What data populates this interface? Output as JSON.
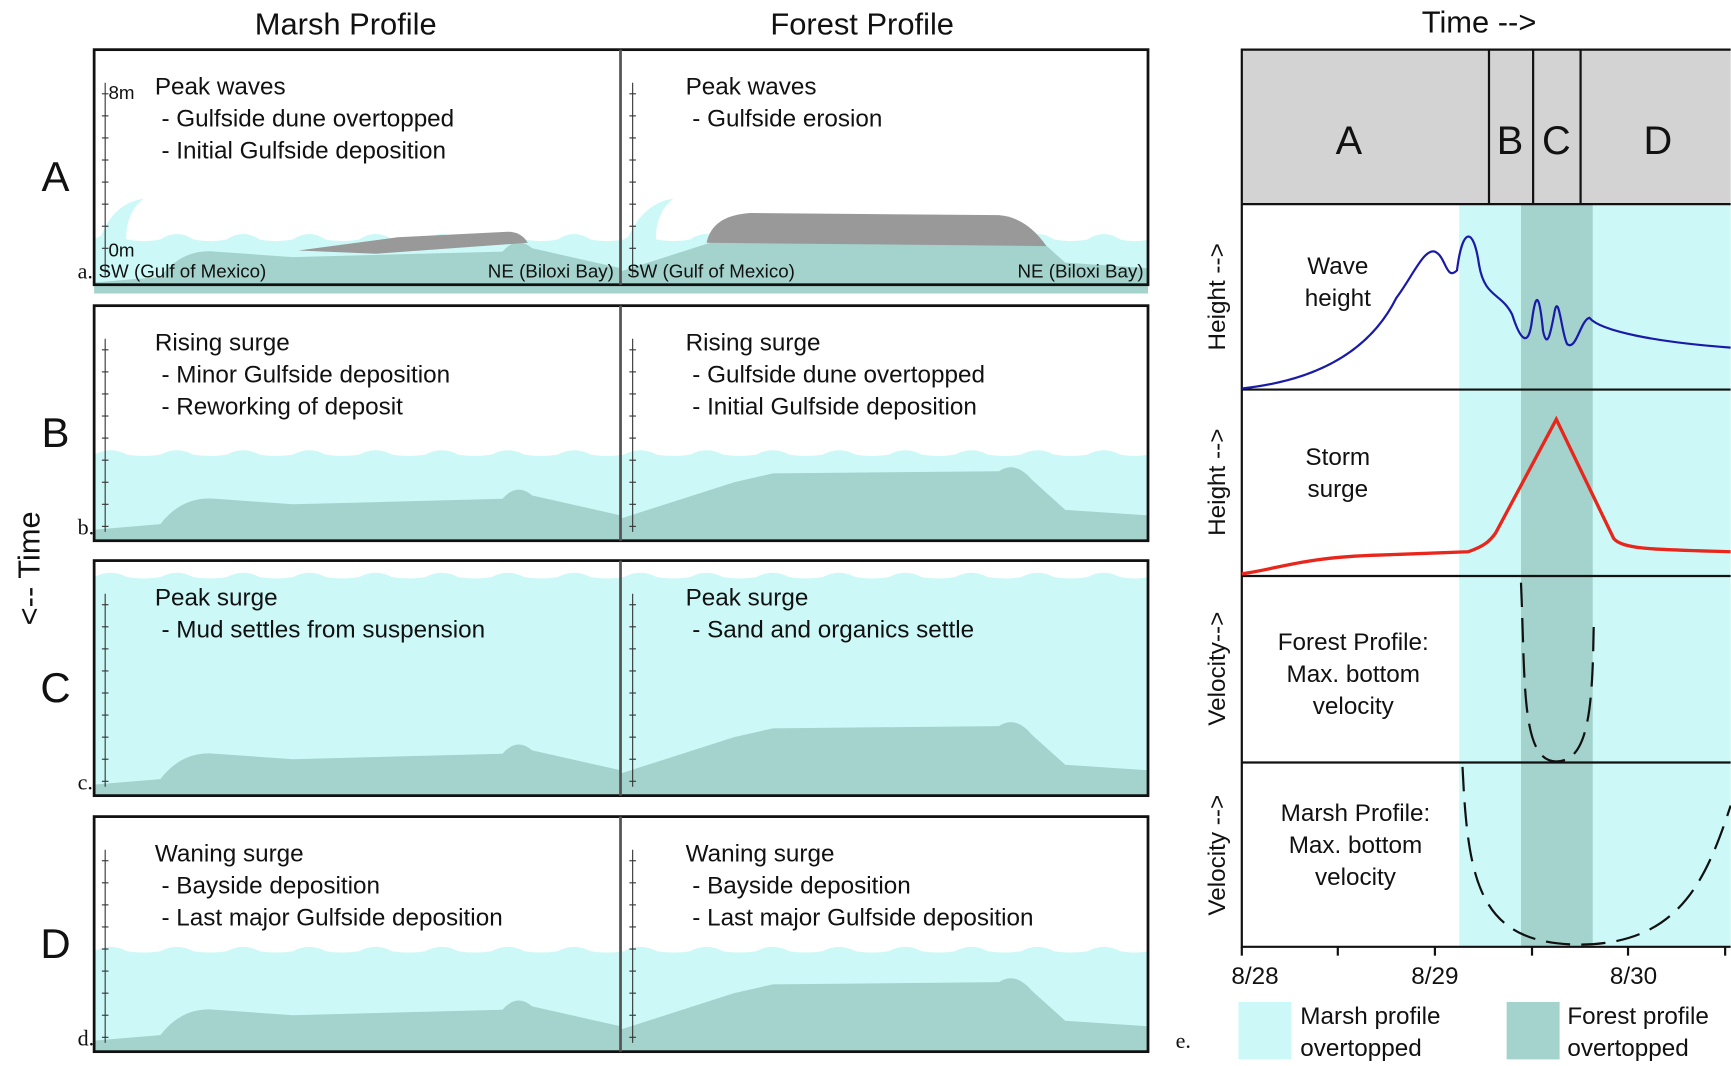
{
  "columns": [
    "Marsh Profile",
    "Forest Profile"
  ],
  "time_axis_label": "<-- Time",
  "scale": {
    "top": "8m",
    "bottom": "0m"
  },
  "locations": {
    "left": "SW (Gulf of Mexico)",
    "right": "NE (Biloxi Bay)"
  },
  "rows": [
    {
      "label": "A",
      "panel_label": "a.",
      "marsh": {
        "title": "Peak waves",
        "notes": [
          "- Gulfside dune overtopped",
          "- Initial Gulfside deposition"
        ]
      },
      "forest": {
        "title": "Peak waves",
        "notes": [
          "- Gulfside erosion"
        ]
      }
    },
    {
      "label": "B",
      "panel_label": "b.",
      "marsh": {
        "title": "Rising surge",
        "notes": [
          "- Minor Gulfside deposition",
          "- Reworking of deposit"
        ]
      },
      "forest": {
        "title": "Rising surge",
        "notes": [
          "- Gulfside dune overtopped",
          "- Initial Gulfside deposition"
        ]
      }
    },
    {
      "label": "C",
      "panel_label": "c.",
      "marsh": {
        "title": "Peak surge",
        "notes": [
          "- Mud settles from suspension"
        ]
      },
      "forest": {
        "title": "Peak surge",
        "notes": [
          "- Sand and organics settle"
        ]
      }
    },
    {
      "label": "D",
      "panel_label": "d.",
      "marsh": {
        "title": "Waning surge",
        "notes": [
          "- Bayside deposition",
          "- Last major Gulfside deposition"
        ]
      },
      "forest": {
        "title": "Waning surge",
        "notes": [
          "- Bayside deposition",
          "- Last major Gulfside deposition"
        ]
      }
    }
  ],
  "timeline": {
    "title": "Time -->",
    "phases": [
      "A",
      "B",
      "C",
      "D"
    ],
    "panels": [
      {
        "axis_label": "Height -->",
        "label": [
          "Wave",
          "height"
        ]
      },
      {
        "axis_label": "Height -->",
        "label": [
          "Storm",
          "surge"
        ]
      },
      {
        "axis_label": "Velocity-->",
        "label": [
          "Forest Profile:",
          "Max. bottom",
          "velocity"
        ]
      },
      {
        "axis_label": "Velocity -->",
        "label": [
          "Marsh Profile:",
          "Max. bottom",
          "velocity"
        ]
      }
    ],
    "dates": [
      "8/28",
      "8/29",
      "8/30"
    ],
    "panel_label": "e.",
    "legend": [
      {
        "label": [
          "Marsh profile",
          "overtopped"
        ]
      },
      {
        "label": [
          "Forest profile",
          "overtopped"
        ]
      }
    ]
  }
}
